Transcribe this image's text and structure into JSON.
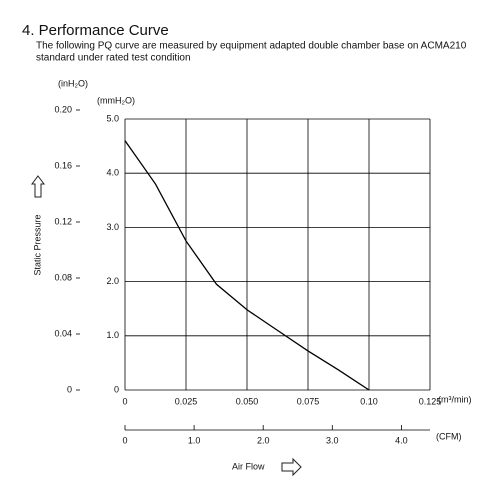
{
  "chart_data": {
    "type": "line",
    "title": "4. Performance Curve",
    "subtitle": [
      "The following PQ curve are measured by equipment adapted double chamber base on ACMA210",
      "standard under rated test condition"
    ],
    "x": [
      0,
      0.0125,
      0.025,
      0.0375,
      0.05,
      0.0625,
      0.075,
      0.0875,
      0.1
    ],
    "values": [
      4.6,
      3.8,
      2.75,
      1.95,
      1.48,
      1.1,
      0.72,
      0.37,
      0
    ],
    "color": "#000000",
    "xlim": [
      0,
      0.125
    ],
    "xticks": [
      0,
      0.025,
      {
        "value": 0.05,
        "label": "0.050"
      },
      0.075,
      {
        "value": 0.1,
        "label": "0.10"
      },
      0.125
    ],
    "x_unit": "(m³/min)",
    "x2lim": [
      0,
      4.414
    ],
    "x2ticks": [
      0,
      {
        "value": 1,
        "label": "1.0"
      },
      {
        "value": 2,
        "label": "2.0"
      },
      {
        "value": 3,
        "label": "3.0"
      },
      {
        "value": 4,
        "label": "4.0"
      }
    ],
    "x2_unit": "(CFM)",
    "ylim": [
      0,
      5
    ],
    "yticks": [
      0,
      {
        "value": 1,
        "label": "1.0"
      },
      {
        "value": 2,
        "label": "2.0"
      },
      {
        "value": 3,
        "label": "3.0"
      },
      {
        "value": 4,
        "label": "4.0"
      },
      {
        "value": 5,
        "label": "5.0"
      }
    ],
    "y_unit": "(mmH₂O)",
    "y2lim": [
      0,
      0.2
    ],
    "y2ticks": [
      0,
      0.04,
      0.08,
      0.12,
      0.16,
      {
        "value": 0.2,
        "label": "0.20"
      }
    ],
    "y2_unit": "(inH₂O)",
    "y_label": "Static Pressure",
    "x_label": "Air Flow",
    "grid": true
  }
}
